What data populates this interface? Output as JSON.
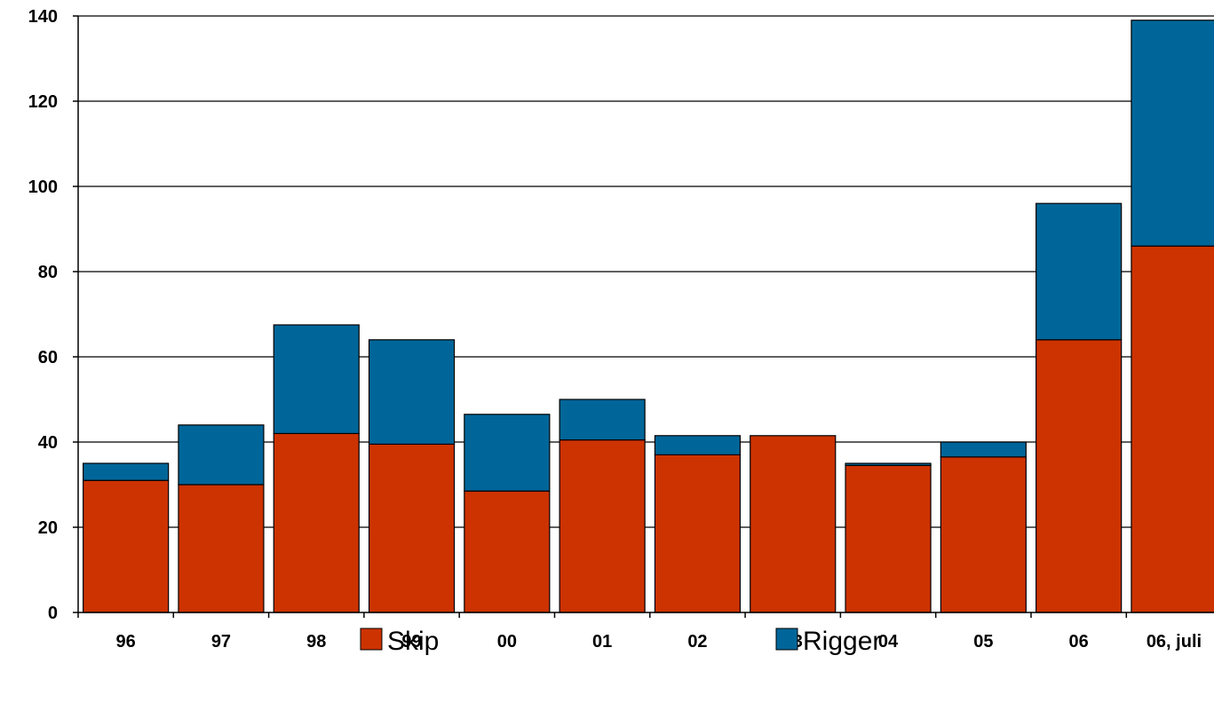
{
  "chart_data": {
    "type": "bar",
    "stacked": true,
    "categories": [
      "96",
      "97",
      "98",
      "99",
      "00",
      "01",
      "02",
      "03",
      "04",
      "05",
      "06",
      "06, juli"
    ],
    "series": [
      {
        "name": "Skip",
        "color": "#cc3300",
        "values": [
          31,
          30,
          42,
          39.5,
          28.5,
          40.5,
          37,
          41.5,
          34.5,
          36.5,
          64,
          86
        ]
      },
      {
        "name": "Rigger",
        "color": "#006699",
        "values": [
          4,
          14,
          25.5,
          24.5,
          18,
          9.5,
          4.5,
          0,
          0.5,
          3.5,
          32,
          53
        ]
      }
    ],
    "ylim": [
      0,
      140
    ],
    "yticks": [
      0,
      20,
      40,
      60,
      80,
      100,
      120,
      140
    ],
    "grid": true,
    "legend_position": "bottom"
  }
}
